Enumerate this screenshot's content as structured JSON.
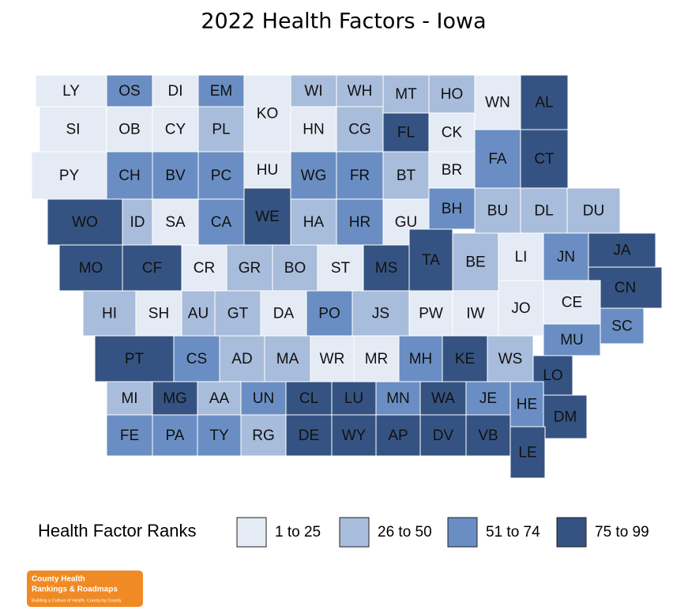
{
  "title": "2022 Health Factors - Iowa",
  "counties": [
    {
      "label": "LY",
      "color": "#e4ebf4"
    },
    {
      "label": "OS",
      "color": "#6a8ec3"
    },
    {
      "label": "DI",
      "color": "#e4ebf4"
    },
    {
      "label": "EM",
      "color": "#6a8ec3"
    },
    {
      "label": "KO",
      "color": "#e4ebf4"
    },
    {
      "label": "WI",
      "color": "#a8bcdb"
    },
    {
      "label": "WH",
      "color": "#a8bcdb"
    },
    {
      "label": "MT",
      "color": "#a8bcdb"
    },
    {
      "label": "HO",
      "color": "#a8bcdb"
    },
    {
      "label": "WN",
      "color": "#e4ebf4"
    },
    {
      "label": "AL",
      "color": "#355382"
    },
    {
      "label": "SI",
      "color": "#e4ebf4"
    },
    {
      "label": "OB",
      "color": "#e4ebf4"
    },
    {
      "label": "CY",
      "color": "#e4ebf4"
    },
    {
      "label": "PL",
      "color": "#a8bcdb"
    },
    {
      "label": "HN",
      "color": "#e4ebf4"
    },
    {
      "label": "CG",
      "color": "#a8bcdb"
    },
    {
      "label": "FL",
      "color": "#355382"
    },
    {
      "label": "CK",
      "color": "#e4ebf4"
    },
    {
      "label": "PY",
      "color": "#e4ebf4"
    },
    {
      "label": "CH",
      "color": "#6a8ec3"
    },
    {
      "label": "BV",
      "color": "#6a8ec3"
    },
    {
      "label": "PC",
      "color": "#6a8ec3"
    },
    {
      "label": "HU",
      "color": "#e4ebf4"
    },
    {
      "label": "WG",
      "color": "#6a8ec3"
    },
    {
      "label": "FR",
      "color": "#6a8ec3"
    },
    {
      "label": "BT",
      "color": "#a8bcdb"
    },
    {
      "label": "BR",
      "color": "#e4ebf4"
    },
    {
      "label": "FA",
      "color": "#6a8ec3"
    },
    {
      "label": "CT",
      "color": "#355382"
    },
    {
      "label": "WO",
      "color": "#355382"
    },
    {
      "label": "ID",
      "color": "#a8bcdb"
    },
    {
      "label": "SA",
      "color": "#e4ebf4"
    },
    {
      "label": "CA",
      "color": "#6a8ec3"
    },
    {
      "label": "WE",
      "color": "#355382"
    },
    {
      "label": "HA",
      "color": "#a8bcdb"
    },
    {
      "label": "HR",
      "color": "#6a8ec3"
    },
    {
      "label": "GU",
      "color": "#e4ebf4"
    },
    {
      "label": "BH",
      "color": "#6a8ec3"
    },
    {
      "label": "BU",
      "color": "#a8bcdb"
    },
    {
      "label": "DL",
      "color": "#a8bcdb"
    },
    {
      "label": "DU",
      "color": "#a8bcdb"
    },
    {
      "label": "MO",
      "color": "#355382"
    },
    {
      "label": "CF",
      "color": "#355382"
    },
    {
      "label": "CR",
      "color": "#e4ebf4"
    },
    {
      "label": "GR",
      "color": "#a8bcdb"
    },
    {
      "label": "BO",
      "color": "#a8bcdb"
    },
    {
      "label": "ST",
      "color": "#e4ebf4"
    },
    {
      "label": "MS",
      "color": "#355382"
    },
    {
      "label": "TA",
      "color": "#355382"
    },
    {
      "label": "BE",
      "color": "#a8bcdb"
    },
    {
      "label": "LI",
      "color": "#e4ebf4"
    },
    {
      "label": "JN",
      "color": "#6a8ec3"
    },
    {
      "label": "JA",
      "color": "#355382"
    },
    {
      "label": "CN",
      "color": "#355382"
    },
    {
      "label": "HI",
      "color": "#a8bcdb"
    },
    {
      "label": "SH",
      "color": "#e4ebf4"
    },
    {
      "label": "AU",
      "color": "#a8bcdb"
    },
    {
      "label": "GT",
      "color": "#a8bcdb"
    },
    {
      "label": "DA",
      "color": "#e4ebf4"
    },
    {
      "label": "PO",
      "color": "#6a8ec3"
    },
    {
      "label": "JS",
      "color": "#a8bcdb"
    },
    {
      "label": "PW",
      "color": "#e4ebf4"
    },
    {
      "label": "IW",
      "color": "#e4ebf4"
    },
    {
      "label": "JO",
      "color": "#e4ebf4"
    },
    {
      "label": "CE",
      "color": "#e4ebf4"
    },
    {
      "label": "SC",
      "color": "#6a8ec3"
    },
    {
      "label": "MU",
      "color": "#6a8ec3"
    },
    {
      "label": "PT",
      "color": "#355382"
    },
    {
      "label": "CS",
      "color": "#6a8ec3"
    },
    {
      "label": "AD",
      "color": "#a8bcdb"
    },
    {
      "label": "MA",
      "color": "#a8bcdb"
    },
    {
      "label": "WR",
      "color": "#e4ebf4"
    },
    {
      "label": "MR",
      "color": "#e4ebf4"
    },
    {
      "label": "MH",
      "color": "#6a8ec3"
    },
    {
      "label": "KE",
      "color": "#355382"
    },
    {
      "label": "WS",
      "color": "#a8bcdb"
    },
    {
      "label": "LO",
      "color": "#355382"
    },
    {
      "label": "MI",
      "color": "#a8bcdb"
    },
    {
      "label": "MG",
      "color": "#355382"
    },
    {
      "label": "AA",
      "color": "#a8bcdb"
    },
    {
      "label": "UN",
      "color": "#6a8ec3"
    },
    {
      "label": "CL",
      "color": "#355382"
    },
    {
      "label": "LU",
      "color": "#355382"
    },
    {
      "label": "MN",
      "color": "#6a8ec3"
    },
    {
      "label": "WA",
      "color": "#355382"
    },
    {
      "label": "JE",
      "color": "#6a8ec3"
    },
    {
      "label": "HE",
      "color": "#6a8ec3"
    },
    {
      "label": "DM",
      "color": "#355382"
    },
    {
      "label": "FE",
      "color": "#6a8ec3"
    },
    {
      "label": "PA",
      "color": "#6a8ec3"
    },
    {
      "label": "TY",
      "color": "#6a8ec3"
    },
    {
      "label": "RG",
      "color": "#a8bcdb"
    },
    {
      "label": "DE",
      "color": "#355382"
    },
    {
      "label": "WY",
      "color": "#355382"
    },
    {
      "label": "AP",
      "color": "#355382"
    },
    {
      "label": "DV",
      "color": "#355382"
    },
    {
      "label": "VB",
      "color": "#355382"
    },
    {
      "label": "LE",
      "color": "#355382"
    }
  ],
  "legend": {
    "title": "Health Factor Ranks",
    "items": [
      {
        "label": "1 to 25",
        "color": "#e4ebf4"
      },
      {
        "label": "26 to 50",
        "color": "#a8bcdb"
      },
      {
        "label": "51 to 74",
        "color": "#6a8ec3"
      },
      {
        "label": "75 to 99",
        "color": "#355382"
      }
    ]
  },
  "logo": {
    "line1": "County Health",
    "line2": "Rankings & Roadmaps",
    "tagline": "Building a Culture of Health, County by County"
  }
}
